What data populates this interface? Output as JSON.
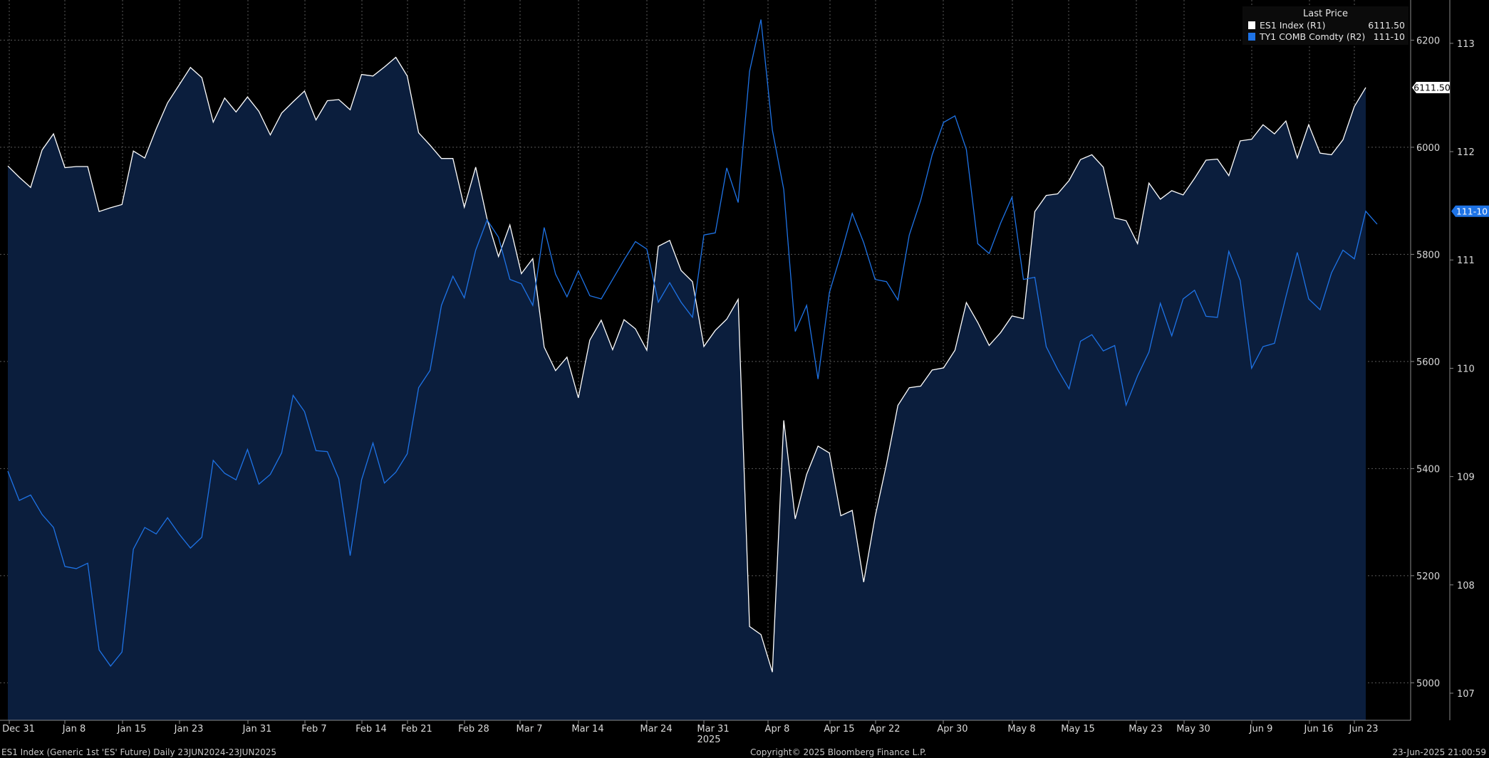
{
  "legend": {
    "title": "Last Price",
    "rows": [
      {
        "name": "ES1 Index  (R1)",
        "value": "6111.50",
        "color": "#ffffff"
      },
      {
        "name": "TY1 COMB Comdty  (R2)",
        "value": "111-10",
        "color": "#1e73e6"
      }
    ]
  },
  "footer": {
    "left": "ES1 Index (Generic 1st 'ES' Future)  Daily 23JUN2024-23JUN2025",
    "center": "Copyright© 2025 Bloomberg Finance L.P.",
    "right": "23-Jun-2025 21:00:59"
  },
  "colors": {
    "background": "#000000",
    "es_line": "#ffffff",
    "es_fill": "#0b1e3d",
    "ty_line": "#1e73e6",
    "grid": "#5a5a5a"
  },
  "chart_data": {
    "type": "line",
    "x_tick_labels": [
      "Dec 31",
      "Jan 8",
      "Jan 15",
      "Jan 23",
      "Jan 31",
      "Feb 7",
      "Feb 14",
      "Feb 21",
      "Feb 28",
      "Mar 7",
      "Mar 14",
      "Mar 24",
      "Mar 31",
      "Apr 8",
      "Apr 15",
      "Apr 22",
      "Apr 30",
      "May 8",
      "May 15",
      "May 23",
      "May 30",
      "Jun 9",
      "Jun 16",
      "Jun 23"
    ],
    "x_year_label": "2025",
    "y_axis_R1": {
      "ticks": [
        5000,
        5200,
        5400,
        5600,
        5800,
        6000,
        6200
      ],
      "range": [
        4930,
        6275
      ]
    },
    "y_axis_R2": {
      "ticks": [
        "107",
        "108",
        "109",
        "110",
        "111",
        "112",
        "113"
      ],
      "range": [
        106.75,
        113.4
      ]
    },
    "last_value_labels": {
      "es": "6111.50",
      "ty": "111-10"
    },
    "series": [
      {
        "name": "ES1 Index  (R1)",
        "axis": "R1",
        "style": "area",
        "values": [
          5965,
          5944,
          5925,
          5995,
          6025,
          5962,
          5964,
          5964,
          5880,
          5887,
          5893,
          5993,
          5980,
          6034,
          6083,
          6116,
          6149,
          6130,
          6047,
          6092,
          6066,
          6094,
          6067,
          6023,
          6064,
          6085,
          6105,
          6051,
          6087,
          6089,
          6070,
          6136,
          6133,
          6150,
          6168,
          6133,
          6027,
          6004,
          5979,
          5979,
          5888,
          5963,
          5866,
          5796,
          5855,
          5764,
          5792,
          5627,
          5583,
          5608,
          5532,
          5640,
          5677,
          5622,
          5678,
          5661,
          5621,
          5815,
          5826,
          5770,
          5749,
          5628,
          5658,
          5679,
          5716,
          5105,
          5090,
          5020,
          5490,
          5306,
          5389,
          5442,
          5429,
          5312,
          5322,
          5188,
          5310,
          5408,
          5518,
          5551,
          5554,
          5584,
          5588,
          5621,
          5710,
          5673,
          5630,
          5654,
          5685,
          5680,
          5880,
          5910,
          5913,
          5938,
          5977,
          5986,
          5963,
          5868,
          5863,
          5820,
          5933,
          5903,
          5919,
          5911,
          5942,
          5976,
          5978,
          5947,
          6012,
          6015,
          6042,
          6025,
          6049,
          5980,
          6042,
          5989,
          5986,
          6014,
          6076,
          6111.5
        ]
      },
      {
        "name": "TY1 COMB Comdty  (R2)",
        "axis": "R2",
        "style": "line",
        "values": [
          109.05,
          108.78,
          108.83,
          108.65,
          108.53,
          108.17,
          108.15,
          108.2,
          107.4,
          107.25,
          107.38,
          108.33,
          108.53,
          108.47,
          108.62,
          108.47,
          108.34,
          108.44,
          109.15,
          109.03,
          108.97,
          109.25,
          108.93,
          109.02,
          109.22,
          109.75,
          109.6,
          109.24,
          109.23,
          108.98,
          108.27,
          108.97,
          109.31,
          108.94,
          109.04,
          109.21,
          109.82,
          109.98,
          110.58,
          110.85,
          110.65,
          111.09,
          111.37,
          111.21,
          110.82,
          110.78,
          110.58,
          111.3,
          110.87,
          110.66,
          110.9,
          110.67,
          110.64,
          110.82,
          111.0,
          111.17,
          111.1,
          110.61,
          110.79,
          110.61,
          110.47,
          111.23,
          111.25,
          111.85,
          111.53,
          112.74,
          113.22,
          112.2,
          111.65,
          110.34,
          110.58,
          109.9,
          110.7,
          111.05,
          111.43,
          111.16,
          110.82,
          110.8,
          110.63,
          111.23,
          111.55,
          111.97,
          112.27,
          112.33,
          112.02,
          111.15,
          111.06,
          111.34,
          111.58,
          110.82,
          110.84,
          110.2,
          109.99,
          109.81,
          110.25,
          110.31,
          110.16,
          110.21,
          109.66,
          109.93,
          110.15,
          110.6,
          110.3,
          110.64,
          110.72,
          110.48,
          110.47,
          111.08,
          110.81,
          110.0,
          110.2,
          110.23,
          110.66,
          111.07,
          110.64,
          110.54,
          110.88,
          111.09,
          111.01,
          111.45,
          111.33
        ]
      }
    ]
  }
}
